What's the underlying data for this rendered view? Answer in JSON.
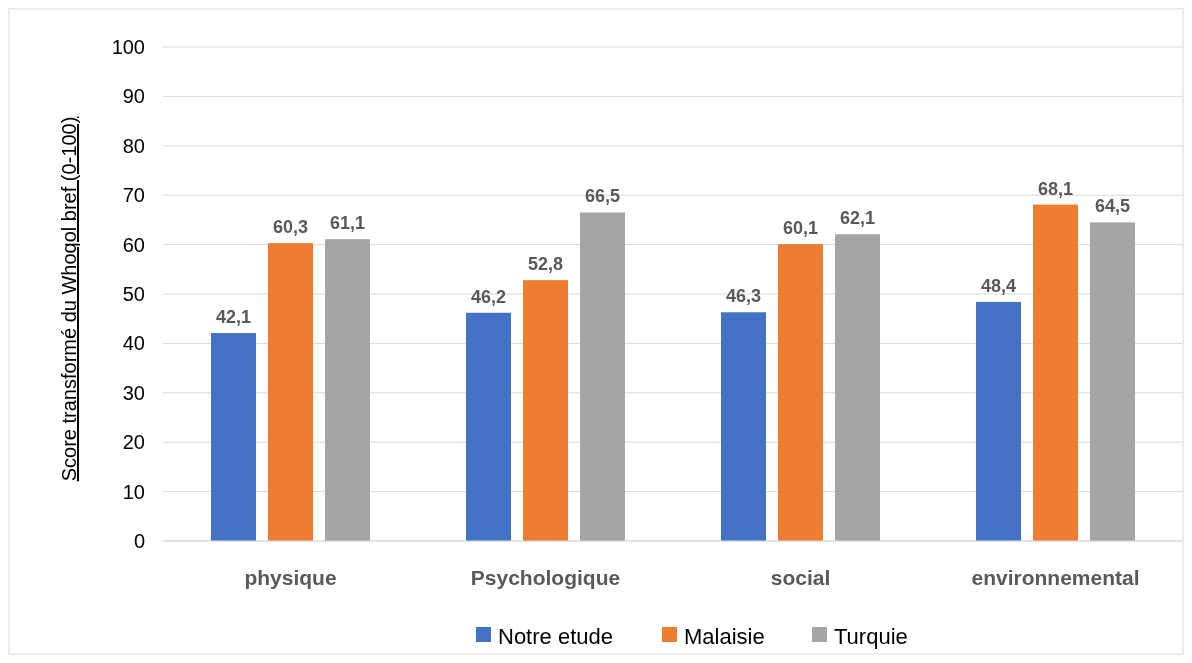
{
  "chart_data": {
    "type": "bar",
    "ylabel": "Score transformé  du  Whoqol bref (0-100)",
    "categories": [
      "physique",
      "Psychologique",
      "social",
      "environnemental"
    ],
    "series": [
      {
        "name": "Notre etude",
        "color": "#4472c4",
        "values": [
          42.1,
          46.2,
          46.3,
          48.4
        ],
        "value_labels": [
          "42,1",
          "46,2",
          "46,3",
          "48,4"
        ]
      },
      {
        "name": "Malaisie",
        "color": "#ed7d31",
        "values": [
          60.3,
          52.8,
          60.1,
          68.1
        ],
        "value_labels": [
          "60,3",
          "52,8",
          "60,1",
          "68,1"
        ]
      },
      {
        "name": "Turquie",
        "color": "#a5a5a5",
        "values": [
          61.1,
          66.5,
          62.1,
          64.5
        ],
        "value_labels": [
          "61,1",
          "66,5",
          "62,1",
          "64,5"
        ]
      }
    ],
    "ylim": [
      0,
      100
    ],
    "yticks": [
      0,
      10,
      20,
      30,
      40,
      50,
      60,
      70,
      80,
      90,
      100
    ],
    "grid": "y",
    "legend": "bottom"
  }
}
